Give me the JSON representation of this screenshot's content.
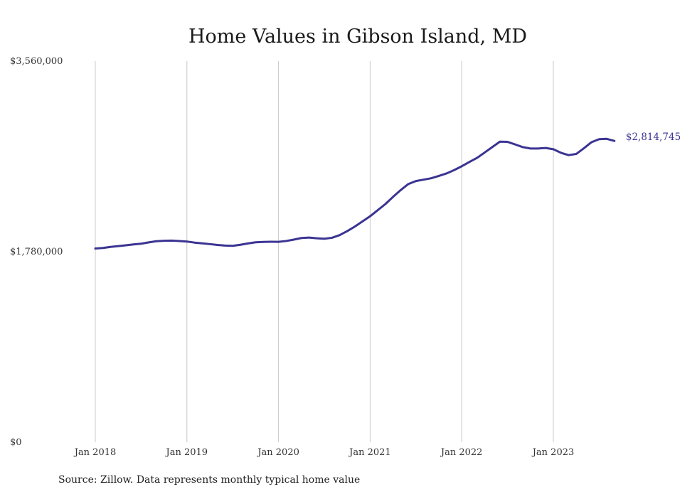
{
  "chart_data": {
    "type": "line",
    "title": "Home Values in Gibson Island, MD",
    "xlabel": "",
    "ylabel": "",
    "ylim": [
      0,
      3560000
    ],
    "y_ticks": [
      {
        "value": 0,
        "label": "$0"
      },
      {
        "value": 1780000,
        "label": "$1,780,000"
      },
      {
        "value": 3560000,
        "label": "$3,560,000"
      }
    ],
    "x_ticks": [
      {
        "value": "2018-01",
        "label": "Jan 2018"
      },
      {
        "value": "2019-01",
        "label": "Jan 2019"
      },
      {
        "value": "2020-01",
        "label": "Jan 2020"
      },
      {
        "value": "2021-01",
        "label": "Jan 2021"
      },
      {
        "value": "2022-01",
        "label": "Jan 2022"
      },
      {
        "value": "2023-01",
        "label": "Jan 2023"
      }
    ],
    "grid": "vertical",
    "line_color": "#3b3492",
    "end_label": "$2,814,745",
    "series": [
      {
        "x": [
          "2018-01",
          "2018-02",
          "2018-03",
          "2018-04",
          "2018-05",
          "2018-06",
          "2018-07",
          "2018-08",
          "2018-09",
          "2018-10",
          "2018-11",
          "2018-12",
          "2019-01",
          "2019-02",
          "2019-03",
          "2019-04",
          "2019-05",
          "2019-06",
          "2019-07",
          "2019-08",
          "2019-09",
          "2019-10",
          "2019-11",
          "2019-12",
          "2020-01",
          "2020-02",
          "2020-03",
          "2020-04",
          "2020-05",
          "2020-06",
          "2020-07",
          "2020-08",
          "2020-09",
          "2020-10",
          "2020-11",
          "2020-12",
          "2021-01",
          "2021-02",
          "2021-03",
          "2021-04",
          "2021-05",
          "2021-06",
          "2021-07",
          "2021-08",
          "2021-09",
          "2021-10",
          "2021-11",
          "2021-12",
          "2022-01",
          "2022-02",
          "2022-03",
          "2022-04",
          "2022-05",
          "2022-06",
          "2022-07",
          "2022-08",
          "2022-09",
          "2022-10",
          "2022-11",
          "2022-12",
          "2023-01",
          "2023-02",
          "2023-03",
          "2023-04",
          "2023-05",
          "2023-06",
          "2023-07",
          "2023-08",
          "2023-09"
        ],
        "values": [
          1810000,
          1815000,
          1825000,
          1832000,
          1840000,
          1848000,
          1855000,
          1867000,
          1878000,
          1882000,
          1884000,
          1880000,
          1875000,
          1865000,
          1858000,
          1851000,
          1843000,
          1837000,
          1835000,
          1845000,
          1857000,
          1868000,
          1871000,
          1873000,
          1872000,
          1880000,
          1893000,
          1908000,
          1912000,
          1905000,
          1901000,
          1910000,
          1935000,
          1972000,
          2015000,
          2063000,
          2111000,
          2168000,
          2225000,
          2292000,
          2355000,
          2412000,
          2440000,
          2453000,
          2466000,
          2488000,
          2511000,
          2542000,
          2578000,
          2618000,
          2656000,
          2706000,
          2757000,
          2808000,
          2806000,
          2782000,
          2757000,
          2744000,
          2744000,
          2749000,
          2737000,
          2704000,
          2682000,
          2693000,
          2746000,
          2803000,
          2831000,
          2834000,
          2814745
        ]
      }
    ]
  },
  "source_text": "Source: Zillow. Data represents monthly typical home value"
}
